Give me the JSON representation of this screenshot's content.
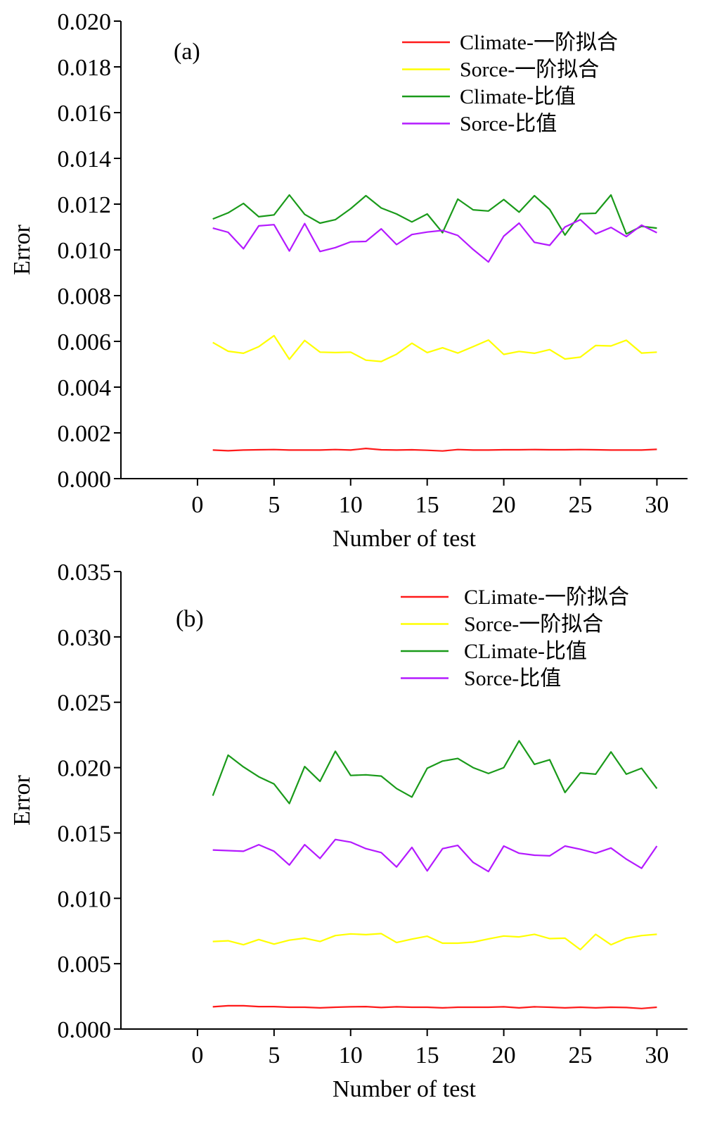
{
  "chart_data": [
    {
      "type": "line",
      "panel_label": "(a)",
      "xlabel": "Number of test",
      "ylabel": "Error",
      "xlim": [
        -5,
        32
      ],
      "ylim": [
        0,
        0.02
      ],
      "xticks": [
        0,
        5,
        10,
        15,
        20,
        25,
        30
      ],
      "xtick_labels": [
        "0",
        "5",
        "10",
        "15",
        "20",
        "25",
        "30"
      ],
      "yticks": [
        0,
        0.002,
        0.004,
        0.006,
        0.008,
        0.01,
        0.012,
        0.014,
        0.016,
        0.018,
        0.02
      ],
      "ytick_labels": [
        "0.000",
        "0.002",
        "0.004",
        "0.006",
        "0.008",
        "0.010",
        "0.012",
        "0.014",
        "0.016",
        "0.018",
        "0.020"
      ],
      "grid": false,
      "legend_position": "top-right",
      "x": [
        1,
        2,
        3,
        4,
        5,
        6,
        7,
        8,
        9,
        10,
        11,
        12,
        13,
        14,
        15,
        16,
        17,
        18,
        19,
        20,
        21,
        22,
        23,
        24,
        25,
        26,
        27,
        28,
        29,
        30
      ],
      "series": [
        {
          "name": "Climate-一阶拟合",
          "color": "#ff1a1a",
          "values": [
            0.00125,
            0.00122,
            0.00125,
            0.00126,
            0.00127,
            0.00125,
            0.00125,
            0.00125,
            0.00127,
            0.00125,
            0.00132,
            0.00126,
            0.00125,
            0.00126,
            0.00124,
            0.00121,
            0.00127,
            0.00125,
            0.00125,
            0.00126,
            0.00126,
            0.00127,
            0.00126,
            0.00126,
            0.00127,
            0.00126,
            0.00125,
            0.00125,
            0.00125,
            0.00128
          ]
        },
        {
          "name": "Sorce-一阶拟合",
          "color": "#ffff00",
          "values": [
            0.00595,
            0.00557,
            0.00548,
            0.00577,
            0.00625,
            0.00522,
            0.00604,
            0.00553,
            0.00551,
            0.00553,
            0.00518,
            0.00512,
            0.00544,
            0.00592,
            0.00551,
            0.00572,
            0.00549,
            0.00577,
            0.00606,
            0.00543,
            0.00556,
            0.00548,
            0.00564,
            0.00523,
            0.00531,
            0.00582,
            0.0058,
            0.00605,
            0.00549,
            0.00553
          ]
        },
        {
          "name": "Climate-比值",
          "color": "#1a9a1a",
          "values": [
            0.01135,
            0.01162,
            0.01203,
            0.01145,
            0.01153,
            0.0124,
            0.01155,
            0.01117,
            0.01132,
            0.0118,
            0.01237,
            0.01183,
            0.01157,
            0.01122,
            0.01157,
            0.01075,
            0.01222,
            0.01175,
            0.0117,
            0.0122,
            0.01165,
            0.01237,
            0.01177,
            0.01065,
            0.01158,
            0.0116,
            0.0124,
            0.0107,
            0.01103,
            0.01095
          ]
        },
        {
          "name": "Sorce-比值",
          "color": "#b41aff",
          "values": [
            0.01095,
            0.01077,
            0.01005,
            0.01105,
            0.0111,
            0.00995,
            0.01115,
            0.00993,
            0.0101,
            0.01035,
            0.01037,
            0.01092,
            0.01023,
            0.01067,
            0.01078,
            0.01085,
            0.01063,
            0.01002,
            0.00947,
            0.0106,
            0.01117,
            0.01033,
            0.0102,
            0.011,
            0.01132,
            0.0107,
            0.01098,
            0.01058,
            0.01108,
            0.01075
          ]
        }
      ]
    },
    {
      "type": "line",
      "panel_label": "(b)",
      "xlabel": "Number of test",
      "ylabel": "Error",
      "xlim": [
        -5,
        32
      ],
      "ylim": [
        0,
        0.035
      ],
      "xticks": [
        0,
        5,
        10,
        15,
        20,
        25,
        30
      ],
      "xtick_labels": [
        "0",
        "5",
        "10",
        "15",
        "20",
        "25",
        "30"
      ],
      "yticks": [
        0,
        0.005,
        0.01,
        0.015,
        0.02,
        0.025,
        0.03,
        0.035
      ],
      "ytick_labels": [
        "0.000",
        "0.005",
        "0.010",
        "0.015",
        "0.020",
        "0.025",
        "0.030",
        "0.035"
      ],
      "grid": false,
      "legend_position": "top-right",
      "x": [
        1,
        2,
        3,
        4,
        5,
        6,
        7,
        8,
        9,
        10,
        11,
        12,
        13,
        14,
        15,
        16,
        17,
        18,
        19,
        20,
        21,
        22,
        23,
        24,
        25,
        26,
        27,
        28,
        29,
        30
      ],
      "series": [
        {
          "name": "CLimate-一阶拟合",
          "color": "#ff1a1a",
          "values": [
            0.0017,
            0.00178,
            0.00178,
            0.00172,
            0.00172,
            0.00167,
            0.00167,
            0.00162,
            0.00167,
            0.0017,
            0.00172,
            0.00165,
            0.0017,
            0.00167,
            0.00167,
            0.00162,
            0.00167,
            0.00167,
            0.00167,
            0.0017,
            0.00162,
            0.0017,
            0.00167,
            0.00162,
            0.00167,
            0.00162,
            0.00167,
            0.00165,
            0.00157,
            0.00167
          ]
        },
        {
          "name": "Sorce-一阶拟合",
          "color": "#ffff00",
          "values": [
            0.0067,
            0.00675,
            0.00645,
            0.00685,
            0.0065,
            0.0068,
            0.00695,
            0.0067,
            0.00715,
            0.00728,
            0.00722,
            0.0073,
            0.00662,
            0.00688,
            0.0071,
            0.00657,
            0.00657,
            0.00665,
            0.0069,
            0.00712,
            0.00705,
            0.00725,
            0.00692,
            0.00695,
            0.00608,
            0.00725,
            0.00645,
            0.00695,
            0.00715,
            0.00725
          ]
        },
        {
          "name": "CLimate-比值",
          "color": "#1a9a1a",
          "values": [
            0.01785,
            0.02095,
            0.02005,
            0.0193,
            0.01875,
            0.01725,
            0.02008,
            0.01895,
            0.02125,
            0.0194,
            0.01945,
            0.01935,
            0.0184,
            0.01775,
            0.01995,
            0.0205,
            0.0207,
            0.02,
            0.01955,
            0.02,
            0.02205,
            0.02025,
            0.0206,
            0.0181,
            0.0196,
            0.0195,
            0.0212,
            0.0195,
            0.01995,
            0.0184
          ]
        },
        {
          "name": "Sorce-比值",
          "color": "#b41aff",
          "values": [
            0.0137,
            0.01365,
            0.0136,
            0.0141,
            0.0136,
            0.01255,
            0.0141,
            0.01305,
            0.0145,
            0.0143,
            0.0138,
            0.0135,
            0.0124,
            0.0139,
            0.0121,
            0.0138,
            0.01405,
            0.01275,
            0.01205,
            0.014,
            0.01345,
            0.0133,
            0.01325,
            0.014,
            0.01375,
            0.01345,
            0.01385,
            0.013,
            0.0123,
            0.014
          ]
        }
      ]
    }
  ]
}
